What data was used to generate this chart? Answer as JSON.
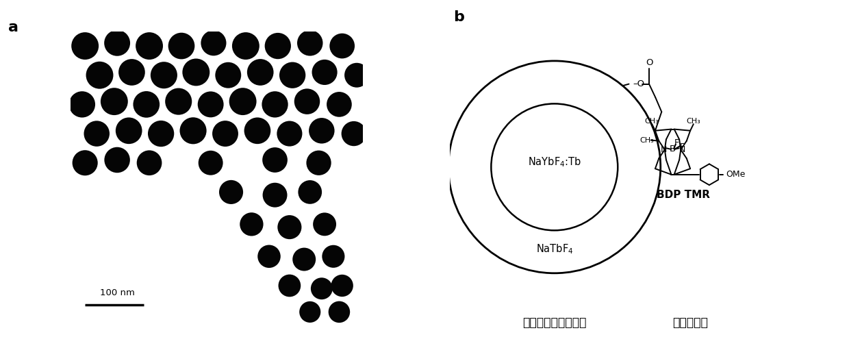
{
  "label_a": "a",
  "label_b": "b",
  "scalebar_text": "100 nm",
  "inner_label": "NaYbF₄:Tb",
  "outer_label": "NaTbF₄",
  "molecule_label": "BDP TMR",
  "donor_label": "上转换纳米额粒供体",
  "acceptor_label": "小分子受体",
  "bg_color": "#ffffff"
}
